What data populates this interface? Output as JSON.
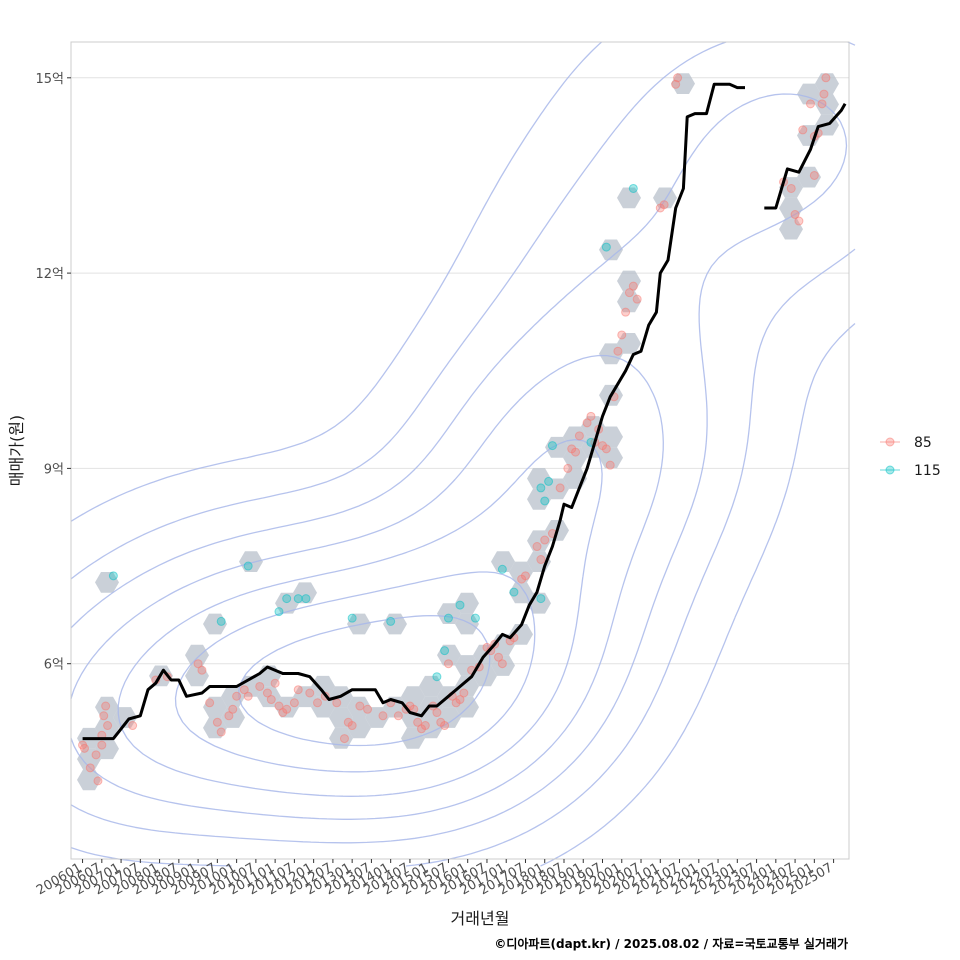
{
  "chart_data": {
    "type": "scatter",
    "xlabel": "거래년월",
    "ylabel": "매매가(원)",
    "caption": "©디아파트(dapt.kr) / 2025.08.02 / 자료=국토교통부 실거래가",
    "x_tick_labels": [
      "200601",
      "200607",
      "200701",
      "200707",
      "200801",
      "200807",
      "200901",
      "200907",
      "201001",
      "201007",
      "201101",
      "201107",
      "201201",
      "201207",
      "201301",
      "201307",
      "201401",
      "201407",
      "201501",
      "201507",
      "201601",
      "201607",
      "201701",
      "201707",
      "201801",
      "201807",
      "201901",
      "201907",
      "202001",
      "202007",
      "202101",
      "202107",
      "202201",
      "202207",
      "202301",
      "202307",
      "202401",
      "202407",
      "202501",
      "202507"
    ],
    "y_ticks": [
      {
        "value": 6,
        "label": "6억"
      },
      {
        "value": 9,
        "label": "9억"
      },
      {
        "value": 12,
        "label": "12억"
      },
      {
        "value": 15,
        "label": "15억"
      }
    ],
    "xlim": [
      2005.7,
      2025.9
    ],
    "ylim": [
      3.0,
      15.55
    ],
    "grid": "horizontal major lines",
    "legend_position": "right",
    "colors": {
      "s85": "#F8766D",
      "s115": "#00BFC4",
      "hex": "#B4BCC8",
      "contour": "#A9B9EA",
      "line": "#000000",
      "panel_border": "#CCCCCC",
      "grid": "#E2E2E2"
    },
    "series": [
      {
        "name": "85",
        "color": "#F8766D",
        "points": [
          [
            2006.0,
            4.75
          ],
          [
            2006.05,
            4.7
          ],
          [
            2006.2,
            4.4
          ],
          [
            2006.35,
            4.6
          ],
          [
            2006.5,
            4.9
          ],
          [
            2006.55,
            5.2
          ],
          [
            2006.6,
            5.35
          ],
          [
            2006.65,
            5.05
          ],
          [
            2006.5,
            4.75
          ],
          [
            2006.4,
            4.2
          ],
          [
            2007.3,
            5.05
          ],
          [
            2007.9,
            5.75
          ],
          [
            2008.2,
            5.8
          ],
          [
            2009.0,
            6.0
          ],
          [
            2009.1,
            5.9
          ],
          [
            2009.3,
            5.4
          ],
          [
            2009.5,
            5.1
          ],
          [
            2009.6,
            4.95
          ],
          [
            2009.8,
            5.2
          ],
          [
            2009.9,
            5.3
          ],
          [
            2010.0,
            5.5
          ],
          [
            2010.2,
            5.6
          ],
          [
            2010.3,
            5.5
          ],
          [
            2010.6,
            5.65
          ],
          [
            2010.8,
            5.55
          ],
          [
            2010.9,
            5.45
          ],
          [
            2011.0,
            5.7
          ],
          [
            2011.1,
            5.35
          ],
          [
            2011.2,
            5.25
          ],
          [
            2011.3,
            5.3
          ],
          [
            2011.5,
            5.4
          ],
          [
            2011.6,
            5.6
          ],
          [
            2011.9,
            5.55
          ],
          [
            2012.1,
            5.4
          ],
          [
            2012.3,
            5.5
          ],
          [
            2012.6,
            5.4
          ],
          [
            2012.8,
            4.85
          ],
          [
            2012.9,
            5.1
          ],
          [
            2013.0,
            5.05
          ],
          [
            2013.2,
            5.35
          ],
          [
            2013.4,
            5.3
          ],
          [
            2013.8,
            5.2
          ],
          [
            2014.0,
            5.4
          ],
          [
            2014.2,
            5.2
          ],
          [
            2014.4,
            5.3
          ],
          [
            2014.5,
            5.35
          ],
          [
            2014.6,
            5.3
          ],
          [
            2014.7,
            5.1
          ],
          [
            2014.8,
            5.0
          ],
          [
            2014.9,
            5.05
          ],
          [
            2015.1,
            5.35
          ],
          [
            2015.2,
            5.25
          ],
          [
            2015.3,
            5.1
          ],
          [
            2015.4,
            5.05
          ],
          [
            2015.5,
            6.0
          ],
          [
            2015.6,
            5.5
          ],
          [
            2015.7,
            5.4
          ],
          [
            2015.8,
            5.45
          ],
          [
            2015.9,
            5.55
          ],
          [
            2016.1,
            5.9
          ],
          [
            2016.3,
            5.95
          ],
          [
            2016.5,
            6.25
          ],
          [
            2016.6,
            6.2
          ],
          [
            2016.7,
            6.3
          ],
          [
            2016.8,
            6.1
          ],
          [
            2016.9,
            6.0
          ],
          [
            2017.1,
            6.35
          ],
          [
            2017.2,
            6.4
          ],
          [
            2017.4,
            7.3
          ],
          [
            2017.5,
            7.35
          ],
          [
            2017.8,
            7.8
          ],
          [
            2017.9,
            7.6
          ],
          [
            2018.0,
            7.9
          ],
          [
            2018.2,
            8.0
          ],
          [
            2018.4,
            8.7
          ],
          [
            2018.6,
            9.0
          ],
          [
            2018.7,
            9.3
          ],
          [
            2018.8,
            9.25
          ],
          [
            2018.9,
            9.5
          ],
          [
            2019.1,
            9.7
          ],
          [
            2019.2,
            9.8
          ],
          [
            2019.3,
            9.4
          ],
          [
            2019.4,
            9.6
          ],
          [
            2019.5,
            9.35
          ],
          [
            2019.6,
            9.3
          ],
          [
            2019.7,
            9.05
          ],
          [
            2019.8,
            10.1
          ],
          [
            2019.9,
            10.8
          ],
          [
            2020.0,
            11.05
          ],
          [
            2020.1,
            11.4
          ],
          [
            2020.2,
            11.7
          ],
          [
            2020.3,
            11.8
          ],
          [
            2020.4,
            11.6
          ],
          [
            2021.0,
            13.0
          ],
          [
            2021.1,
            13.05
          ],
          [
            2021.4,
            14.9
          ],
          [
            2021.45,
            15.0
          ],
          [
            2024.2,
            13.4
          ],
          [
            2024.4,
            13.3
          ],
          [
            2024.5,
            12.9
          ],
          [
            2024.6,
            12.8
          ],
          [
            2024.7,
            14.2
          ],
          [
            2024.9,
            14.6
          ],
          [
            2025.0,
            14.1
          ],
          [
            2025.1,
            14.15
          ],
          [
            2025.2,
            14.6
          ],
          [
            2025.25,
            14.75
          ],
          [
            2025.3,
            15.0
          ],
          [
            2025.0,
            13.5
          ]
        ]
      },
      {
        "name": "115",
        "color": "#00BFC4",
        "points": [
          [
            2006.8,
            7.35
          ],
          [
            2009.6,
            6.65
          ],
          [
            2010.3,
            7.5
          ],
          [
            2011.1,
            6.8
          ],
          [
            2011.3,
            7.0
          ],
          [
            2011.6,
            7.0
          ],
          [
            2011.8,
            7.0
          ],
          [
            2013.0,
            6.7
          ],
          [
            2014.0,
            6.65
          ],
          [
            2015.2,
            5.8
          ],
          [
            2015.4,
            6.2
          ],
          [
            2015.5,
            6.7
          ],
          [
            2015.8,
            6.9
          ],
          [
            2016.2,
            6.7
          ],
          [
            2016.9,
            7.45
          ],
          [
            2017.2,
            7.1
          ],
          [
            2017.9,
            8.7
          ],
          [
            2018.1,
            8.8
          ],
          [
            2018.2,
            9.35
          ],
          [
            2018.0,
            8.5
          ],
          [
            2017.9,
            7.0
          ],
          [
            2019.2,
            9.4
          ],
          [
            2019.6,
            12.4
          ],
          [
            2020.3,
            13.3
          ]
        ]
      }
    ],
    "trend_line": [
      [
        2006.0,
        4.85
      ],
      [
        2006.8,
        4.85
      ],
      [
        2007.0,
        5.0
      ],
      [
        2007.2,
        5.15
      ],
      [
        2007.5,
        5.2
      ],
      [
        2007.7,
        5.6
      ],
      [
        2007.9,
        5.7
      ],
      [
        2008.1,
        5.9
      ],
      [
        2008.3,
        5.75
      ],
      [
        2008.5,
        5.75
      ],
      [
        2008.7,
        5.5
      ],
      [
        2009.1,
        5.55
      ],
      [
        2009.3,
        5.65
      ],
      [
        2009.6,
        5.65
      ],
      [
        2010.0,
        5.65
      ],
      [
        2010.3,
        5.75
      ],
      [
        2010.6,
        5.85
      ],
      [
        2010.8,
        5.95
      ],
      [
        2011.2,
        5.85
      ],
      [
        2011.6,
        5.85
      ],
      [
        2011.9,
        5.8
      ],
      [
        2012.2,
        5.6
      ],
      [
        2012.4,
        5.45
      ],
      [
        2012.7,
        5.5
      ],
      [
        2013.0,
        5.6
      ],
      [
        2013.6,
        5.6
      ],
      [
        2013.8,
        5.4
      ],
      [
        2014.0,
        5.45
      ],
      [
        2014.3,
        5.4
      ],
      [
        2014.5,
        5.25
      ],
      [
        2014.8,
        5.2
      ],
      [
        2015.0,
        5.35
      ],
      [
        2015.2,
        5.35
      ],
      [
        2015.5,
        5.5
      ],
      [
        2015.8,
        5.65
      ],
      [
        2016.1,
        5.8
      ],
      [
        2016.4,
        6.1
      ],
      [
        2016.7,
        6.3
      ],
      [
        2016.9,
        6.45
      ],
      [
        2017.1,
        6.4
      ],
      [
        2017.4,
        6.6
      ],
      [
        2017.6,
        6.9
      ],
      [
        2017.8,
        7.1
      ],
      [
        2018.0,
        7.5
      ],
      [
        2018.2,
        7.8
      ],
      [
        2018.4,
        8.2
      ],
      [
        2018.5,
        8.45
      ],
      [
        2018.7,
        8.4
      ],
      [
        2018.9,
        8.7
      ],
      [
        2019.1,
        9.0
      ],
      [
        2019.3,
        9.4
      ],
      [
        2019.5,
        9.8
      ],
      [
        2019.7,
        10.1
      ],
      [
        2019.9,
        10.3
      ],
      [
        2020.1,
        10.5
      ],
      [
        2020.3,
        10.75
      ],
      [
        2020.5,
        10.8
      ],
      [
        2020.7,
        11.2
      ],
      [
        2020.9,
        11.4
      ],
      [
        2021.0,
        12.0
      ],
      [
        2021.2,
        12.2
      ],
      [
        2021.4,
        13.0
      ],
      [
        2021.6,
        13.3
      ],
      [
        2021.7,
        14.4
      ],
      [
        2021.9,
        14.45
      ],
      [
        2022.2,
        14.45
      ],
      [
        2022.4,
        14.9
      ],
      [
        2022.8,
        14.9
      ],
      [
        2023.0,
        14.85
      ],
      [
        2023.2,
        14.85
      ],
      null,
      [
        2023.7,
        13.0
      ],
      [
        2024.0,
        13.0
      ],
      [
        2024.3,
        13.6
      ],
      [
        2024.6,
        13.55
      ],
      [
        2024.9,
        13.9
      ],
      [
        2025.1,
        14.25
      ],
      [
        2025.4,
        14.3
      ],
      [
        2025.7,
        14.5
      ],
      [
        2025.8,
        14.6
      ]
    ]
  }
}
